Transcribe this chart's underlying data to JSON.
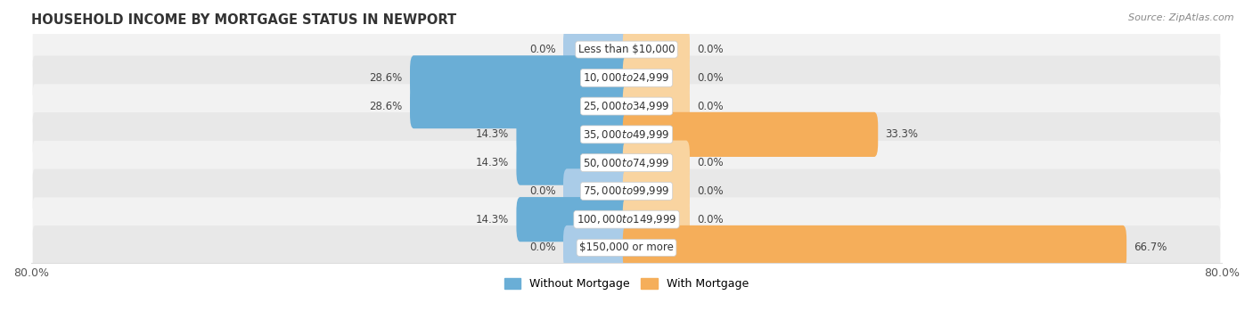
{
  "title": "HOUSEHOLD INCOME BY MORTGAGE STATUS IN NEWPORT",
  "source": "Source: ZipAtlas.com",
  "categories": [
    "Less than $10,000",
    "$10,000 to $24,999",
    "$25,000 to $34,999",
    "$35,000 to $49,999",
    "$50,000 to $74,999",
    "$75,000 to $99,999",
    "$100,000 to $149,999",
    "$150,000 or more"
  ],
  "without_mortgage": [
    0.0,
    28.6,
    28.6,
    14.3,
    14.3,
    0.0,
    14.3,
    0.0
  ],
  "with_mortgage": [
    0.0,
    0.0,
    0.0,
    33.3,
    0.0,
    0.0,
    0.0,
    66.7
  ],
  "color_without": "#6aaed6",
  "color_with": "#f5ae5a",
  "color_without_zero": "#aacce8",
  "color_with_zero": "#f9d4a0",
  "xlim_left": -80.0,
  "xlim_right": 80.0,
  "bar_height": 0.58,
  "row_bg_light": "#f2f2f2",
  "row_bg_dark": "#e8e8e8",
  "title_fontsize": 10.5,
  "label_fontsize": 8.5,
  "cat_fontsize": 8.5,
  "tick_fontsize": 9,
  "legend_fontsize": 9,
  "zero_bar_width": 8.0
}
